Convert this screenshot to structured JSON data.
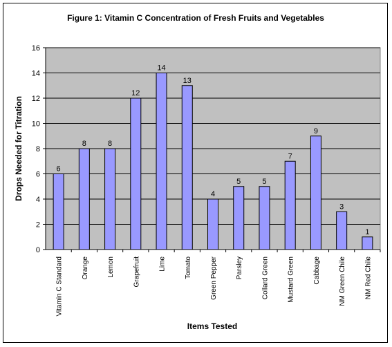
{
  "chart_data": {
    "type": "bar",
    "title": "Figure 1: Vitamin C Concentration of Fresh Fruits and Vegetables",
    "xlabel": "Items Tested",
    "ylabel": "Drops Needed for Titration",
    "ylim": [
      0,
      16
    ],
    "yticks": [
      0,
      2,
      4,
      6,
      8,
      10,
      12,
      14,
      16
    ],
    "grid": true,
    "legend": "none",
    "categories": [
      "Vitamin C Standard",
      "Orange",
      "Lemon",
      "Grapefruit",
      "Lime",
      "Tomato",
      "Green Pepper",
      "Parsley",
      "Collard Green",
      "Mustard Green",
      "Cabbage",
      "NM Green Chile",
      "NM Red Chile"
    ],
    "values": [
      6,
      8,
      8,
      12,
      14,
      13,
      4,
      5,
      5,
      7,
      9,
      3,
      1
    ],
    "colors": {
      "plot_background": "#c0c0c0",
      "bar_fill": "#9999ff",
      "bar_stroke": "#000000",
      "gridline": "#000000"
    }
  }
}
